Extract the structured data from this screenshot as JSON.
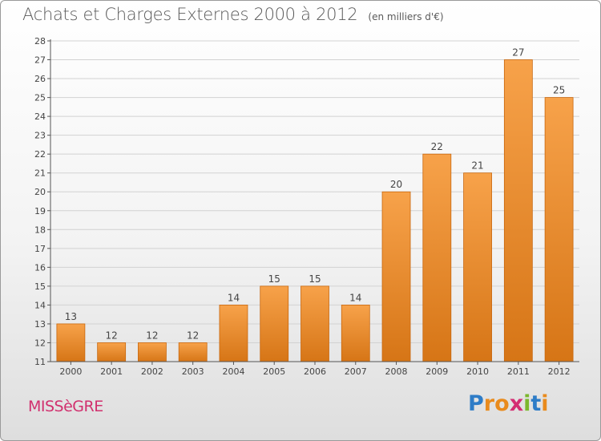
{
  "title": "Achats et Charges Externes 2000 à 2012",
  "subtitle": "(en milliers d'€)",
  "place": "MISSèGRE",
  "logo": {
    "letters": [
      "P",
      "r",
      "o",
      "x",
      "i",
      "t",
      "i"
    ],
    "colors": [
      "#2e7cc7",
      "#e98b1d",
      "#e98b1d",
      "#d42c72",
      "#7cb72e",
      "#2e7cc7",
      "#e98b1d"
    ]
  },
  "colors": {
    "bar_light": "#f7a24a",
    "bar_dark": "#d67516",
    "bar_stroke": "#c9680f",
    "grid": "#d2d2d2",
    "axis": "#555555"
  },
  "chart_data": {
    "type": "bar",
    "categories": [
      "2000",
      "2001",
      "2002",
      "2003",
      "2004",
      "2005",
      "2006",
      "2007",
      "2008",
      "2009",
      "2010",
      "2011",
      "2012"
    ],
    "values": [
      13,
      12,
      12,
      12,
      14,
      15,
      15,
      14,
      20,
      22,
      21,
      27,
      25
    ],
    "ylim": [
      11,
      28
    ],
    "yticks": [
      11,
      12,
      13,
      14,
      15,
      16,
      17,
      18,
      19,
      20,
      21,
      22,
      23,
      24,
      25,
      26,
      27,
      28
    ],
    "grid": true,
    "data_labels": true
  }
}
